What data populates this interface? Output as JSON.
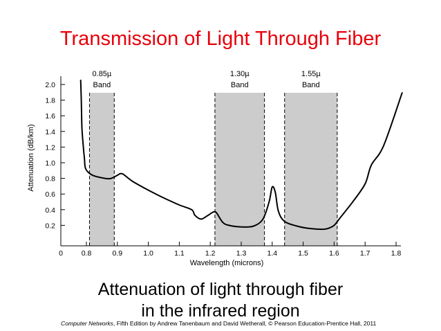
{
  "slide": {
    "title": "Transmission of Light Through Fiber",
    "caption_line1": "Attenuation of light through fiber",
    "caption_line2": "in the infrared region",
    "credit_book": "Computer Networks",
    "credit_rest": ", Fifth Edition by Andrew Tanenbaum and David Wetherall, © Pearson Education-Prentice Hall, 2011",
    "title_color": "#e8000b"
  },
  "chart_data": {
    "type": "line",
    "title": "",
    "xlabel": "Wavelength (microns)",
    "ylabel": "Attenuation (dB/km)",
    "xlim": [
      0,
      1.8
    ],
    "ylim": [
      0,
      2.2
    ],
    "xticks": [
      "0",
      "0.8",
      "0.9",
      "1.0",
      "1.1",
      "1.2",
      "1.3",
      "1.4",
      "1.5",
      "1.6",
      "1.7",
      "1.8"
    ],
    "xtick_values": [
      0,
      0.8,
      0.9,
      1.0,
      1.1,
      1.2,
      1.3,
      1.4,
      1.5,
      1.6,
      1.7,
      1.8
    ],
    "yticks": [
      "0.2",
      "0.4",
      "0.6",
      "0.8",
      "1.0",
      "1.2",
      "1.4",
      "1.6",
      "1.8",
      "2.0"
    ],
    "ytick_values": [
      0.2,
      0.4,
      0.6,
      0.8,
      1.0,
      1.2,
      1.4,
      1.6,
      1.8,
      2.0
    ],
    "bands": [
      {
        "label": "0.85µ",
        "sublabel": "Band",
        "from": 0.81,
        "to": 0.89
      },
      {
        "label": "1.30µ",
        "sublabel": "Band",
        "from": 1.215,
        "to": 1.375
      },
      {
        "label": "1.55µ",
        "sublabel": "Band",
        "from": 1.44,
        "to": 1.61
      }
    ],
    "band_fill": "#cccccc",
    "series": [
      {
        "x": [
          0.62,
          0.64,
          0.66,
          0.7,
          0.74,
          0.78,
          0.82,
          0.86,
          0.88,
          0.9,
          0.91,
          0.92,
          0.95,
          1.0,
          1.05,
          1.1,
          1.14,
          1.15,
          1.17,
          1.19,
          1.21,
          1.22,
          1.24,
          1.26,
          1.3,
          1.34,
          1.37,
          1.39,
          1.4,
          1.41,
          1.42,
          1.44,
          1.48,
          1.52,
          1.56,
          1.58,
          1.6,
          1.62,
          1.66,
          1.7,
          1.72,
          1.76,
          1.82
        ],
        "y": [
          2.06,
          1.8,
          1.45,
          1.22,
          1.05,
          0.92,
          0.84,
          0.8,
          0.8,
          0.84,
          0.86,
          0.85,
          0.76,
          0.65,
          0.55,
          0.46,
          0.4,
          0.33,
          0.28,
          0.32,
          0.37,
          0.36,
          0.24,
          0.2,
          0.18,
          0.19,
          0.28,
          0.5,
          0.69,
          0.62,
          0.38,
          0.25,
          0.19,
          0.16,
          0.15,
          0.16,
          0.2,
          0.3,
          0.5,
          0.73,
          0.97,
          1.22,
          1.9
        ],
        "color": "#000000"
      }
    ]
  }
}
